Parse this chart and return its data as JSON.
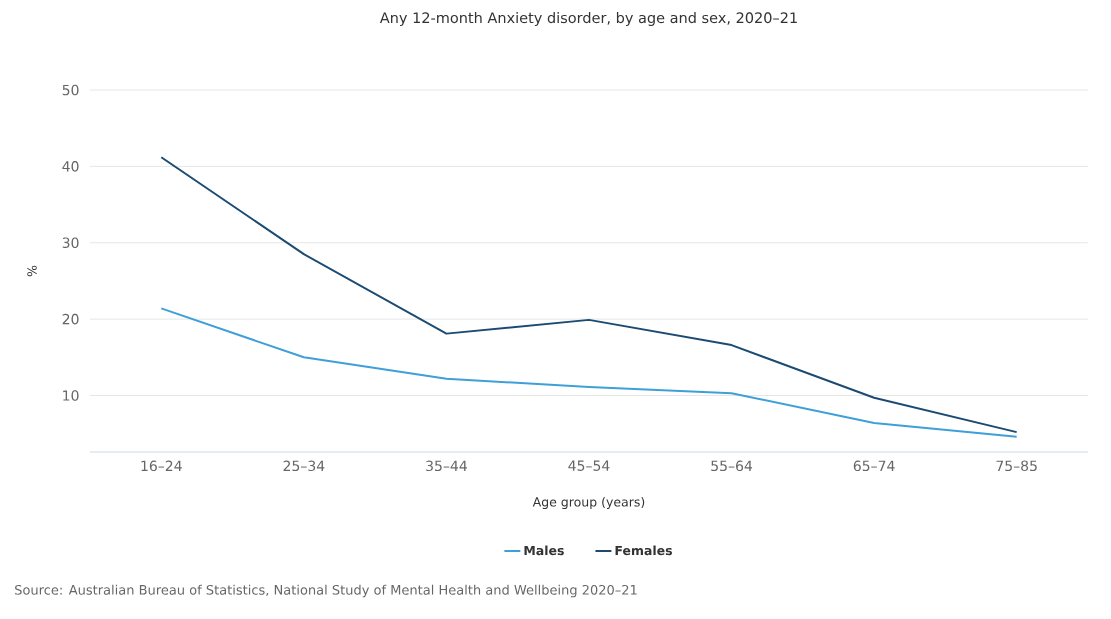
{
  "chart_data": {
    "type": "line",
    "title": "Any 12-month Anxiety disorder, by age and sex, 2020–21",
    "xlabel": "Age group (years)",
    "ylabel": "%",
    "categories": [
      "16–24",
      "25–34",
      "35–44",
      "45–54",
      "55–64",
      "65–74",
      "75–85"
    ],
    "series": [
      {
        "name": "Males",
        "color": "#3f9fd8",
        "values": [
          21.4,
          15.0,
          12.2,
          11.1,
          10.3,
          6.4,
          4.6
        ]
      },
      {
        "name": "Females",
        "color": "#1b4b73",
        "values": [
          41.2,
          28.5,
          18.1,
          19.9,
          16.6,
          9.7,
          5.2
        ]
      }
    ],
    "ylim": [
      2.6,
      50
    ],
    "yticks": [
      10,
      20,
      30,
      40,
      50
    ],
    "grid": "y",
    "legend": "bottom",
    "line_style": "solid",
    "annotations": [
      "Source: Australian Bureau of Statistics, National Study of Mental Health and Wellbeing 2020–21"
    ]
  }
}
